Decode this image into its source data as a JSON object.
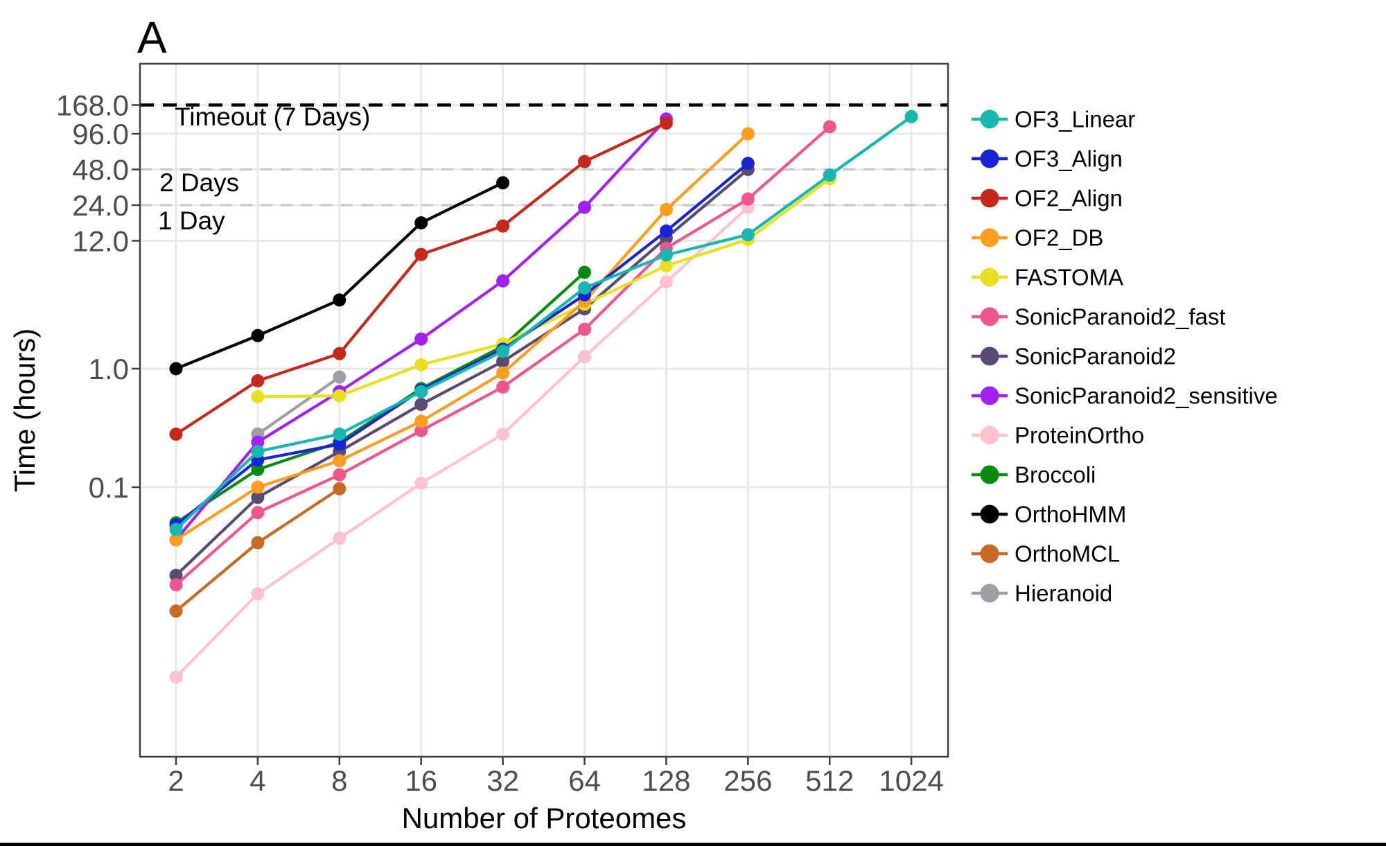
{
  "figure": {
    "panel_label": "A"
  },
  "chart_data": {
    "type": "line",
    "title": "",
    "xlabel": "Number of Proteomes",
    "ylabel": "Time (hours)",
    "x_scale": "log2",
    "y_scale": "log10",
    "grid": true,
    "legend_position": "right",
    "x_ticks": [
      2,
      4,
      8,
      16,
      32,
      64,
      128,
      256,
      512,
      1024
    ],
    "y_ticks": [
      {
        "value": 168,
        "label": "168.0"
      },
      {
        "value": 96,
        "label": "96.0"
      },
      {
        "value": 48,
        "label": "48.0"
      },
      {
        "value": 24,
        "label": "24.0"
      },
      {
        "value": 12,
        "label": "12.0"
      },
      {
        "value": 1,
        "label": "1.0"
      },
      {
        "value": 0.1,
        "label": "0.1"
      }
    ],
    "reference_lines": [
      {
        "value": 168,
        "style": "dashed",
        "color": "#000000",
        "width": 4.5,
        "dash": "20 13",
        "label": "Timeout (7 Days)"
      },
      {
        "value": 48,
        "style": "dashed",
        "color": "#c8c8c8",
        "width": 3.2,
        "dash": "17 12",
        "label": "2 Days"
      },
      {
        "value": 24,
        "style": "dashed",
        "color": "#c8c8c8",
        "width": 3.2,
        "dash": "17 12",
        "label": "1 Day"
      }
    ],
    "series": [
      {
        "name": "OF3_Linear",
        "color": "#15b7ae",
        "points": [
          [
            2,
            0.044
          ],
          [
            4,
            0.2
          ],
          [
            8,
            0.28
          ],
          [
            16,
            0.64
          ],
          [
            32,
            1.4
          ],
          [
            64,
            4.8
          ],
          [
            128,
            9.1
          ],
          [
            256,
            13.5
          ],
          [
            512,
            43
          ],
          [
            1024,
            134
          ]
        ]
      },
      {
        "name": "OF3_Align",
        "color": "#1b24d2",
        "points": [
          [
            2,
            0.048
          ],
          [
            4,
            0.17
          ],
          [
            8,
            0.23
          ],
          [
            16,
            0.66
          ],
          [
            32,
            1.46
          ],
          [
            64,
            4.2
          ],
          [
            128,
            14.5
          ],
          [
            256,
            54
          ]
        ]
      },
      {
        "name": "OF2_Align",
        "color": "#c5281c",
        "points": [
          [
            2,
            0.28
          ],
          [
            4,
            0.79
          ],
          [
            8,
            1.34
          ],
          [
            16,
            9.2
          ],
          [
            32,
            16
          ],
          [
            64,
            56
          ],
          [
            128,
            118
          ]
        ]
      },
      {
        "name": "OF2_DB",
        "color": "#ff9d1e",
        "points": [
          [
            2,
            0.036
          ],
          [
            4,
            0.1
          ],
          [
            8,
            0.167
          ],
          [
            16,
            0.36
          ],
          [
            32,
            0.92
          ],
          [
            64,
            3.7
          ],
          [
            128,
            22
          ],
          [
            256,
            96
          ]
        ]
      },
      {
        "name": "FASTOMA",
        "color": "#e9df21",
        "points": [
          [
            4,
            0.58
          ],
          [
            8,
            0.59
          ],
          [
            16,
            1.08
          ],
          [
            32,
            1.62
          ],
          [
            64,
            3.5
          ],
          [
            128,
            7.4
          ],
          [
            256,
            12.3
          ],
          [
            512,
            40
          ]
        ]
      },
      {
        "name": "SonicParanoid2_fast",
        "color": "#f0568e",
        "points": [
          [
            2,
            0.015
          ],
          [
            4,
            0.061
          ],
          [
            8,
            0.127
          ],
          [
            16,
            0.3
          ],
          [
            32,
            0.7
          ],
          [
            64,
            2.15
          ],
          [
            128,
            10.4
          ],
          [
            256,
            27
          ],
          [
            512,
            110
          ]
        ]
      },
      {
        "name": "SonicParanoid2",
        "color": "#5a4b72",
        "points": [
          [
            2,
            0.018
          ],
          [
            4,
            0.082
          ],
          [
            8,
            0.2
          ],
          [
            16,
            0.5
          ],
          [
            32,
            1.15
          ],
          [
            64,
            3.2
          ],
          [
            128,
            12.7
          ],
          [
            256,
            48
          ]
        ]
      },
      {
        "name": "SonicParanoid2_sensitive",
        "color": "#a122f0",
        "points": [
          [
            2,
            0.036
          ],
          [
            4,
            0.24
          ],
          [
            8,
            0.64
          ],
          [
            16,
            1.78
          ],
          [
            32,
            5.5
          ],
          [
            64,
            23
          ],
          [
            128,
            128
          ]
        ]
      },
      {
        "name": "ProteinOrtho",
        "color": "#ffc3d0",
        "points": [
          [
            2,
            0.0025
          ],
          [
            4,
            0.0126
          ],
          [
            8,
            0.037
          ],
          [
            16,
            0.108
          ],
          [
            32,
            0.28
          ],
          [
            64,
            1.26
          ],
          [
            128,
            5.4
          ],
          [
            256,
            23
          ]
        ]
      },
      {
        "name": "Broccoli",
        "color": "#0b8a12",
        "points": [
          [
            2,
            0.05
          ],
          [
            4,
            0.141
          ],
          [
            8,
            0.24
          ],
          [
            16,
            0.68
          ],
          [
            32,
            1.55
          ],
          [
            64,
            6.5
          ]
        ]
      },
      {
        "name": "OrthoHMM",
        "color": "#000000",
        "points": [
          [
            2,
            1.0
          ],
          [
            4,
            1.9
          ],
          [
            8,
            3.8
          ],
          [
            16,
            17
          ],
          [
            32,
            37
          ]
        ]
      },
      {
        "name": "OrthoMCL",
        "color": "#c76b24",
        "points": [
          [
            2,
            0.009
          ],
          [
            4,
            0.034
          ],
          [
            8,
            0.097
          ]
        ]
      },
      {
        "name": "Hieranoid",
        "color": "#9f9ea3",
        "points": [
          [
            4,
            0.28
          ],
          [
            8,
            0.85
          ]
        ]
      }
    ]
  }
}
